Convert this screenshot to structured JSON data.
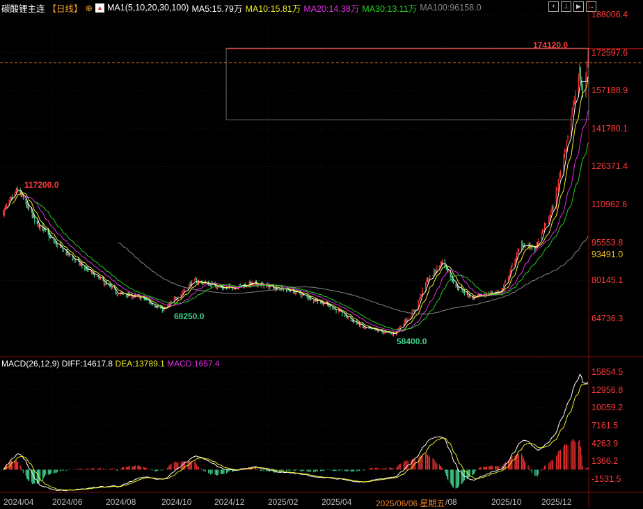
{
  "header": {
    "title": "碳酸锂主连",
    "period": "【日线】",
    "ma_group": "MA1(5,10,20,30,100)",
    "ma5": "MA5:15.79万",
    "ma10": "MA10:15.81万",
    "ma20": "MA20:14.38万",
    "ma30": "MA30:13.11万",
    "ma100": "MA100:96158.0"
  },
  "toolbar": {
    "icons": [
      "crosshair-icon",
      "zoom-in-icon",
      "play-icon",
      "exit-icon"
    ]
  },
  "price_axis": [
    "188006.4",
    "172597.6",
    "157188.9",
    "141780.1",
    "126371.4",
    "110962.6",
    "95553.8",
    "80145.1",
    "64736.3"
  ],
  "price_axis_values": [
    188006.4,
    172597.6,
    157188.9,
    141780.1,
    126371.4,
    110962.6,
    95553.8,
    80145.1,
    64736.3
  ],
  "current_marker": "93491.0",
  "annotations": {
    "high_left": "117200.0",
    "low_mid": "68250.0",
    "low": "58400.0",
    "high": "174120.0"
  },
  "macd": {
    "label": "MACD(26,12,9)",
    "diff": "DIFF:14617.8",
    "dea": "DEA:13789.1",
    "macd": "MACD:1657.4",
    "axis": [
      "15854.5",
      "12956.8",
      "10059.2",
      "7161.5",
      "4263.9",
      "1366.2",
      "-1531.5"
    ],
    "axis_values": [
      15854.5,
      12956.8,
      10059.2,
      7161.5,
      4263.9,
      1366.2,
      -1531.5
    ]
  },
  "date_axis": [
    "2024/04",
    "2024/06",
    "2024/08",
    "2024/10",
    "2024/12",
    "2025/02",
    "2025/04",
    "2025/06/06 星期五",
    "/08",
    "2025/10",
    "2025/12"
  ],
  "colors": {
    "up": "#ff3535",
    "down": "#3ed08c",
    "ma5": "#ffffff",
    "ma10": "#f0f020",
    "ma20": "#e030e0",
    "ma30": "#20d020",
    "ma100": "#888888",
    "axis": "#ff3a3a"
  },
  "chart_data": {
    "type": "candlestick",
    "title": "碳酸锂主连【日线】",
    "approx_close_keypoints": [
      [
        "2024-04-01",
        108000
      ],
      [
        "2024-04-19",
        117200
      ],
      [
        "2024-05-10",
        105000
      ],
      [
        "2024-06-05",
        95000
      ],
      [
        "2024-07-05",
        86000
      ],
      [
        "2024-08-15",
        75000
      ],
      [
        "2024-09-15",
        73000
      ],
      [
        "2024-10-10",
        68250
      ],
      [
        "2024-11-10",
        80000
      ],
      [
        "2024-12-15",
        77000
      ],
      [
        "2025-01-20",
        79000
      ],
      [
        "2025-03-01",
        76000
      ],
      [
        "2025-04-10",
        70000
      ],
      [
        "2025-05-20",
        61000
      ],
      [
        "2025-06-20",
        58400
      ],
      [
        "2025-07-10",
        68000
      ],
      [
        "2025-07-22",
        80000
      ],
      [
        "2025-08-08",
        88000
      ],
      [
        "2025-08-25",
        78000
      ],
      [
        "2025-09-15",
        73000
      ],
      [
        "2025-10-20",
        76000
      ],
      [
        "2025-11-10",
        95000
      ],
      [
        "2025-11-25",
        93000
      ],
      [
        "2025-12-12",
        110000
      ],
      [
        "2025-12-24",
        135000
      ],
      [
        "2026-01-06",
        165000
      ],
      [
        "2026-01-09",
        155000
      ],
      [
        "2026-01-14",
        170000
      ]
    ],
    "high": 174120.0,
    "low": 58400.0,
    "ylim": [
      64736.3,
      188006.4
    ]
  }
}
